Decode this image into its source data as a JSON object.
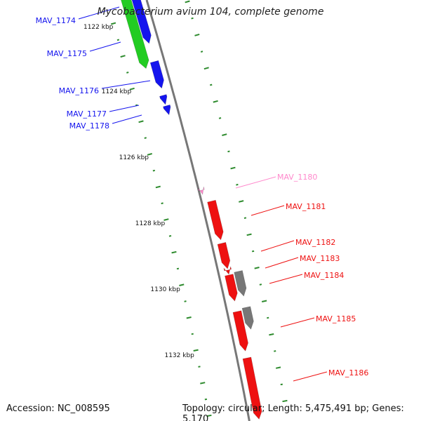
{
  "header": {
    "title": "Mycobacterium avium 104, complete genome"
  },
  "footer": {
    "accession": "Accession: NC_008595",
    "topology": "Topology: circular; Length: 5,475,491 bp; Genes: 5,170"
  },
  "colors": {
    "backbone": "#777777",
    "tick": "#2e8b2e",
    "blue": "#1414ee",
    "green": "#22cc22",
    "red": "#ee1111",
    "pink": "#ff88cc",
    "gray": "#777777"
  },
  "ticks": {
    "major_labels": [
      "1122 kbp",
      "1124 kbp",
      "1126 kbp",
      "1128 kbp",
      "1130 kbp",
      "1132 kbp"
    ]
  },
  "genes": [
    {
      "label": "MAV_1174",
      "strand": "left"
    },
    {
      "label": "MAV_1175",
      "strand": "left"
    },
    {
      "label": "MAV_1176",
      "strand": "left"
    },
    {
      "label": "MAV_1177",
      "strand": "left"
    },
    {
      "label": "MAV_1178",
      "strand": "left"
    },
    {
      "label": "MAV_1180",
      "strand": "right"
    },
    {
      "label": "MAV_1181",
      "strand": "right"
    },
    {
      "label": "MAV_1182",
      "strand": "right"
    },
    {
      "label": "MAV_1183",
      "strand": "right"
    },
    {
      "label": "MAV_1184",
      "strand": "right"
    },
    {
      "label": "MAV_1185",
      "strand": "right"
    },
    {
      "label": "MAV_1186",
      "strand": "right"
    }
  ]
}
